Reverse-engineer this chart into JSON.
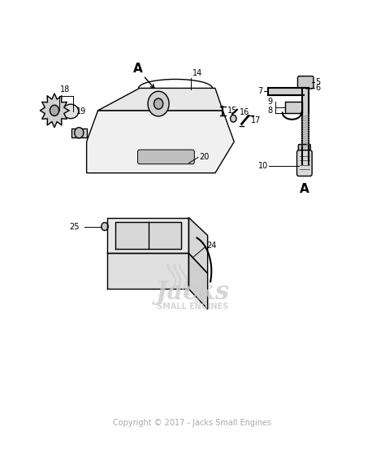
{
  "background_color": "#ffffff",
  "copyright_text": "Copyright © 2017 - Jacks Small Engines",
  "fig_width": 4.74,
  "fig_height": 5.57,
  "dpi": 100
}
